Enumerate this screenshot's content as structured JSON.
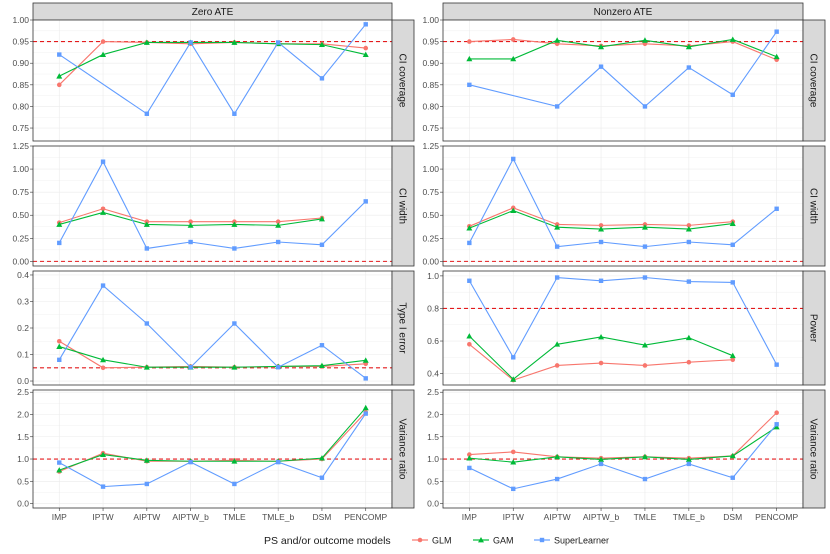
{
  "chart_data": {
    "type": "line",
    "columns": [
      "Zero ATE",
      "Nonzero ATE"
    ],
    "categories": [
      "IMP",
      "IPTW",
      "AIPTW",
      "AIPTW_b",
      "TMLE",
      "TMLE_b",
      "DSM",
      "PENCOMP"
    ],
    "legend": {
      "title": "PS and/or outcome models",
      "position": "bottom",
      "entries": [
        {
          "name": "GLM",
          "color": "#F8766D",
          "marker": "circle"
        },
        {
          "name": "GAM",
          "color": "#00BA38",
          "marker": "triangle"
        },
        {
          "name": "SuperLearner",
          "color": "#619CFF",
          "marker": "square"
        }
      ]
    },
    "reference_line_color": "#E41A1C",
    "rows": [
      {
        "row_label": "CI coverage",
        "panels": [
          {
            "ylim": [
              0.72,
              1.0
            ],
            "ref": 0.95,
            "ticks": [
              0.75,
              0.8,
              0.85,
              0.9,
              0.95,
              1.0
            ],
            "tick_labels": [
              "0.75",
              "0.80",
              "0.85",
              "0.90",
              "0.95",
              "1.00"
            ],
            "series": [
              {
                "name": "GLM",
                "values": [
                  0.85,
                  0.95,
                  0.948,
                  0.945,
                  0.948,
                  0.945,
                  0.945,
                  0.935
                ]
              },
              {
                "name": "GAM",
                "values": [
                  0.87,
                  0.92,
                  0.948,
                  0.948,
                  0.948,
                  0.945,
                  0.943,
                  0.92
                ]
              },
              {
                "name": "SuperLearner",
                "values": [
                  0.92,
                  null,
                  0.783,
                  0.948,
                  0.783,
                  0.948,
                  0.865,
                  0.99
                ]
              }
            ]
          },
          {
            "ylim": [
              0.72,
              1.0
            ],
            "ref": 0.95,
            "ticks": [
              0.75,
              0.8,
              0.85,
              0.9,
              0.95,
              1.0
            ],
            "tick_labels": [
              "0.75",
              "0.80",
              "0.85",
              "0.90",
              "0.95",
              "1.00"
            ],
            "series": [
              {
                "name": "GLM",
                "values": [
                  0.95,
                  0.955,
                  0.945,
                  0.94,
                  0.945,
                  0.94,
                  0.95,
                  0.908
                ]
              },
              {
                "name": "GAM",
                "values": [
                  0.91,
                  0.91,
                  0.953,
                  0.938,
                  0.953,
                  0.938,
                  0.955,
                  0.915
                ]
              },
              {
                "name": "SuperLearner",
                "values": [
                  0.85,
                  null,
                  0.8,
                  0.892,
                  0.8,
                  0.89,
                  0.827,
                  0.973
                ]
              }
            ]
          }
        ]
      },
      {
        "row_label": "CI width",
        "panels": [
          {
            "ylim": [
              -0.05,
              1.25
            ],
            "ref": 0.0,
            "ticks": [
              0.0,
              0.25,
              0.5,
              0.75,
              1.0,
              1.25
            ],
            "tick_labels": [
              "0.00",
              "0.25",
              "0.50",
              "0.75",
              "1.00",
              "1.25"
            ],
            "series": [
              {
                "name": "GLM",
                "values": [
                  0.42,
                  0.57,
                  0.43,
                  0.43,
                  0.43,
                  0.43,
                  0.47,
                  null
                ]
              },
              {
                "name": "GAM",
                "values": [
                  0.4,
                  0.53,
                  0.4,
                  0.39,
                  0.4,
                  0.39,
                  0.46,
                  null
                ]
              },
              {
                "name": "SuperLearner",
                "values": [
                  0.2,
                  1.08,
                  0.14,
                  0.21,
                  0.14,
                  0.21,
                  0.18,
                  0.65
                ]
              }
            ]
          },
          {
            "ylim": [
              -0.05,
              1.25
            ],
            "ref": 0.0,
            "ticks": [
              0.0,
              0.25,
              0.5,
              0.75,
              1.0,
              1.25
            ],
            "tick_labels": [
              "0.00",
              "0.25",
              "0.50",
              "0.75",
              "1.00",
              "1.25"
            ],
            "series": [
              {
                "name": "GLM",
                "values": [
                  0.38,
                  0.58,
                  0.4,
                  0.39,
                  0.4,
                  0.39,
                  0.43,
                  null
                ]
              },
              {
                "name": "GAM",
                "values": [
                  0.36,
                  0.55,
                  0.37,
                  0.35,
                  0.37,
                  0.35,
                  0.41,
                  null
                ]
              },
              {
                "name": "SuperLearner",
                "values": [
                  0.2,
                  1.11,
                  0.16,
                  0.21,
                  0.16,
                  0.21,
                  0.18,
                  0.57
                ]
              }
            ]
          }
        ]
      },
      {
        "row_label": "Type I error / Power",
        "panels": [
          {
            "row_label": "Type I error",
            "ylim": [
              -0.015,
              0.415
            ],
            "ref": 0.05,
            "ticks": [
              0.0,
              0.1,
              0.2,
              0.3,
              0.4
            ],
            "tick_labels": [
              "0.0",
              "0.1",
              "0.2",
              "0.3",
              "0.4"
            ],
            "series": [
              {
                "name": "GLM",
                "values": [
                  0.15,
                  0.05,
                  0.052,
                  0.055,
                  0.052,
                  0.055,
                  0.055,
                  0.065
                ]
              },
              {
                "name": "GAM",
                "values": [
                  0.13,
                  0.08,
                  0.052,
                  0.052,
                  0.052,
                  0.055,
                  0.058,
                  0.078
                ]
              },
              {
                "name": "SuperLearner",
                "values": [
                  0.08,
                  0.36,
                  0.217,
                  0.052,
                  0.217,
                  0.052,
                  0.135,
                  0.01
                ]
              }
            ]
          },
          {
            "row_label": "Power",
            "ylim": [
              0.33,
              1.03
            ],
            "ref": 0.8,
            "ticks": [
              0.4,
              0.6,
              0.8,
              1.0
            ],
            "tick_labels": [
              "0.4",
              "0.6",
              "0.8",
              "1.0"
            ],
            "series": [
              {
                "name": "GLM",
                "values": [
                  0.58,
                  0.36,
                  0.45,
                  0.465,
                  0.45,
                  0.47,
                  0.485,
                  null
                ]
              },
              {
                "name": "GAM",
                "values": [
                  0.63,
                  0.365,
                  0.58,
                  0.625,
                  0.575,
                  0.62,
                  0.51,
                  null
                ]
              },
              {
                "name": "SuperLearner",
                "values": [
                  0.97,
                  0.5,
                  0.99,
                  0.97,
                  0.99,
                  0.965,
                  0.96,
                  0.455
                ]
              }
            ]
          }
        ]
      },
      {
        "row_label": "Variance ratio",
        "panels": [
          {
            "ylim": [
              -0.1,
              2.55
            ],
            "ref": 1.0,
            "ticks": [
              0.0,
              0.5,
              1.0,
              1.5,
              2.0,
              2.5
            ],
            "tick_labels": [
              "0.0",
              "0.5",
              "1.0",
              "1.5",
              "2.0",
              "2.5"
            ],
            "series": [
              {
                "name": "GLM",
                "values": [
                  0.72,
                  1.13,
                  0.95,
                  0.95,
                  0.97,
                  0.95,
                  1.0,
                  2.05
                ]
              },
              {
                "name": "GAM",
                "values": [
                  0.75,
                  1.1,
                  0.97,
                  0.95,
                  0.95,
                  0.95,
                  1.02,
                  2.15
                ]
              },
              {
                "name": "SuperLearner",
                "values": [
                  0.92,
                  0.38,
                  0.44,
                  0.93,
                  0.44,
                  0.93,
                  0.58,
                  2.02
                ]
              }
            ]
          },
          {
            "ylim": [
              -0.1,
              2.55
            ],
            "ref": 1.0,
            "ticks": [
              0.0,
              0.5,
              1.0,
              1.5,
              2.0,
              2.5
            ],
            "tick_labels": [
              "0.0",
              "0.5",
              "1.0",
              "1.5",
              "2.0",
              "2.5"
            ],
            "series": [
              {
                "name": "GLM",
                "values": [
                  1.1,
                  1.16,
                  1.05,
                  1.02,
                  1.05,
                  1.02,
                  1.07,
                  2.04
                ]
              },
              {
                "name": "GAM",
                "values": [
                  1.02,
                  0.93,
                  1.05,
                  0.99,
                  1.05,
                  0.99,
                  1.07,
                  1.72
                ]
              },
              {
                "name": "SuperLearner",
                "values": [
                  0.8,
                  0.33,
                  0.55,
                  0.89,
                  0.55,
                  0.89,
                  0.58,
                  1.78
                ]
              }
            ]
          }
        ]
      }
    ]
  }
}
